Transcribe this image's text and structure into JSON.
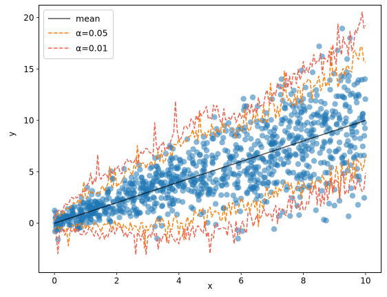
{
  "chart_data": {
    "type": "scatter",
    "title": "",
    "xlabel": "x",
    "ylabel": "y",
    "xlim": [
      -0.5,
      10.5
    ],
    "ylim": [
      -4.8,
      21.2
    ],
    "xticks": [
      0,
      2,
      4,
      6,
      8,
      10
    ],
    "yticks": [
      0,
      5,
      10,
      15,
      20
    ],
    "xtick_labels": [
      "0",
      "2",
      "4",
      "6",
      "8",
      "10"
    ],
    "ytick_labels": [
      "0",
      "5",
      "10",
      "15",
      "20"
    ],
    "grid": false,
    "legend_position": "top-left",
    "legend": [
      {
        "label": "mean",
        "color": "#555555",
        "style": "solid"
      },
      {
        "label": "α=0.05",
        "color": "#ff7f0e",
        "style": "dashed"
      },
      {
        "label": "α=0.01",
        "color": "#f0604d",
        "style": "dashed"
      }
    ],
    "mean_line": {
      "x": [
        0,
        10
      ],
      "y": [
        0,
        10
      ]
    },
    "scatter": {
      "color": "#1f77b4",
      "count": 1000,
      "x_range": [
        0,
        10
      ],
      "model": "y = x + noise, noise spread grows with x (about 0.5 at x=0 up to 4 at x=10)",
      "notable_points": [
        {
          "x": 9.5,
          "y": 18.0
        },
        {
          "x": 9.1,
          "y": 16.8
        },
        {
          "x": 7.3,
          "y": 14.0
        },
        {
          "x": 5.9,
          "y": -1.5
        },
        {
          "x": 3.3,
          "y": -1.5
        }
      ]
    },
    "band_alpha_005": {
      "x": [
        0,
        0.5,
        1,
        1.5,
        2,
        2.5,
        3,
        3.5,
        4,
        4.5,
        5,
        5.5,
        6,
        6.5,
        7,
        7.5,
        8,
        8.5,
        9,
        9.5,
        10
      ],
      "upper": [
        0.6,
        1.5,
        2.6,
        3.3,
        4.0,
        5.0,
        6.0,
        6.5,
        7.5,
        8.5,
        8.9,
        9.0,
        9.3,
        10.0,
        11.0,
        12.0,
        12.8,
        13.5,
        14.0,
        15.0,
        16.5
      ],
      "lower": [
        -0.4,
        -0.5,
        -0.2,
        -0.4,
        -0.2,
        -0.5,
        -0.2,
        0.0,
        0.2,
        0.5,
        0.8,
        1.0,
        1.5,
        2.3,
        2.8,
        3.0,
        3.6,
        4.0,
        4.5,
        5.0,
        5.5
      ]
    },
    "band_alpha_001": {
      "x": [
        0,
        0.5,
        1,
        1.5,
        2,
        2.5,
        3,
        3.5,
        4,
        4.5,
        5,
        5.5,
        6,
        6.5,
        7,
        7.5,
        8,
        8.5,
        9,
        9.5,
        10
      ],
      "upper": [
        0.9,
        2.0,
        3.4,
        4.3,
        5.0,
        6.0,
        6.9,
        7.5,
        8.5,
        10.0,
        10.8,
        10.5,
        10.8,
        11.3,
        12.8,
        13.8,
        14.8,
        15.4,
        16.3,
        17.8,
        19.5
      ],
      "lower": [
        -0.7,
        -0.9,
        -0.7,
        -1.2,
        -0.7,
        -1.4,
        -1.0,
        -1.3,
        -1.3,
        -0.8,
        -0.7,
        -0.8,
        -0.3,
        0.6,
        1.0,
        1.8,
        2.3,
        2.8,
        3.3,
        3.9,
        4.3
      ]
    }
  }
}
